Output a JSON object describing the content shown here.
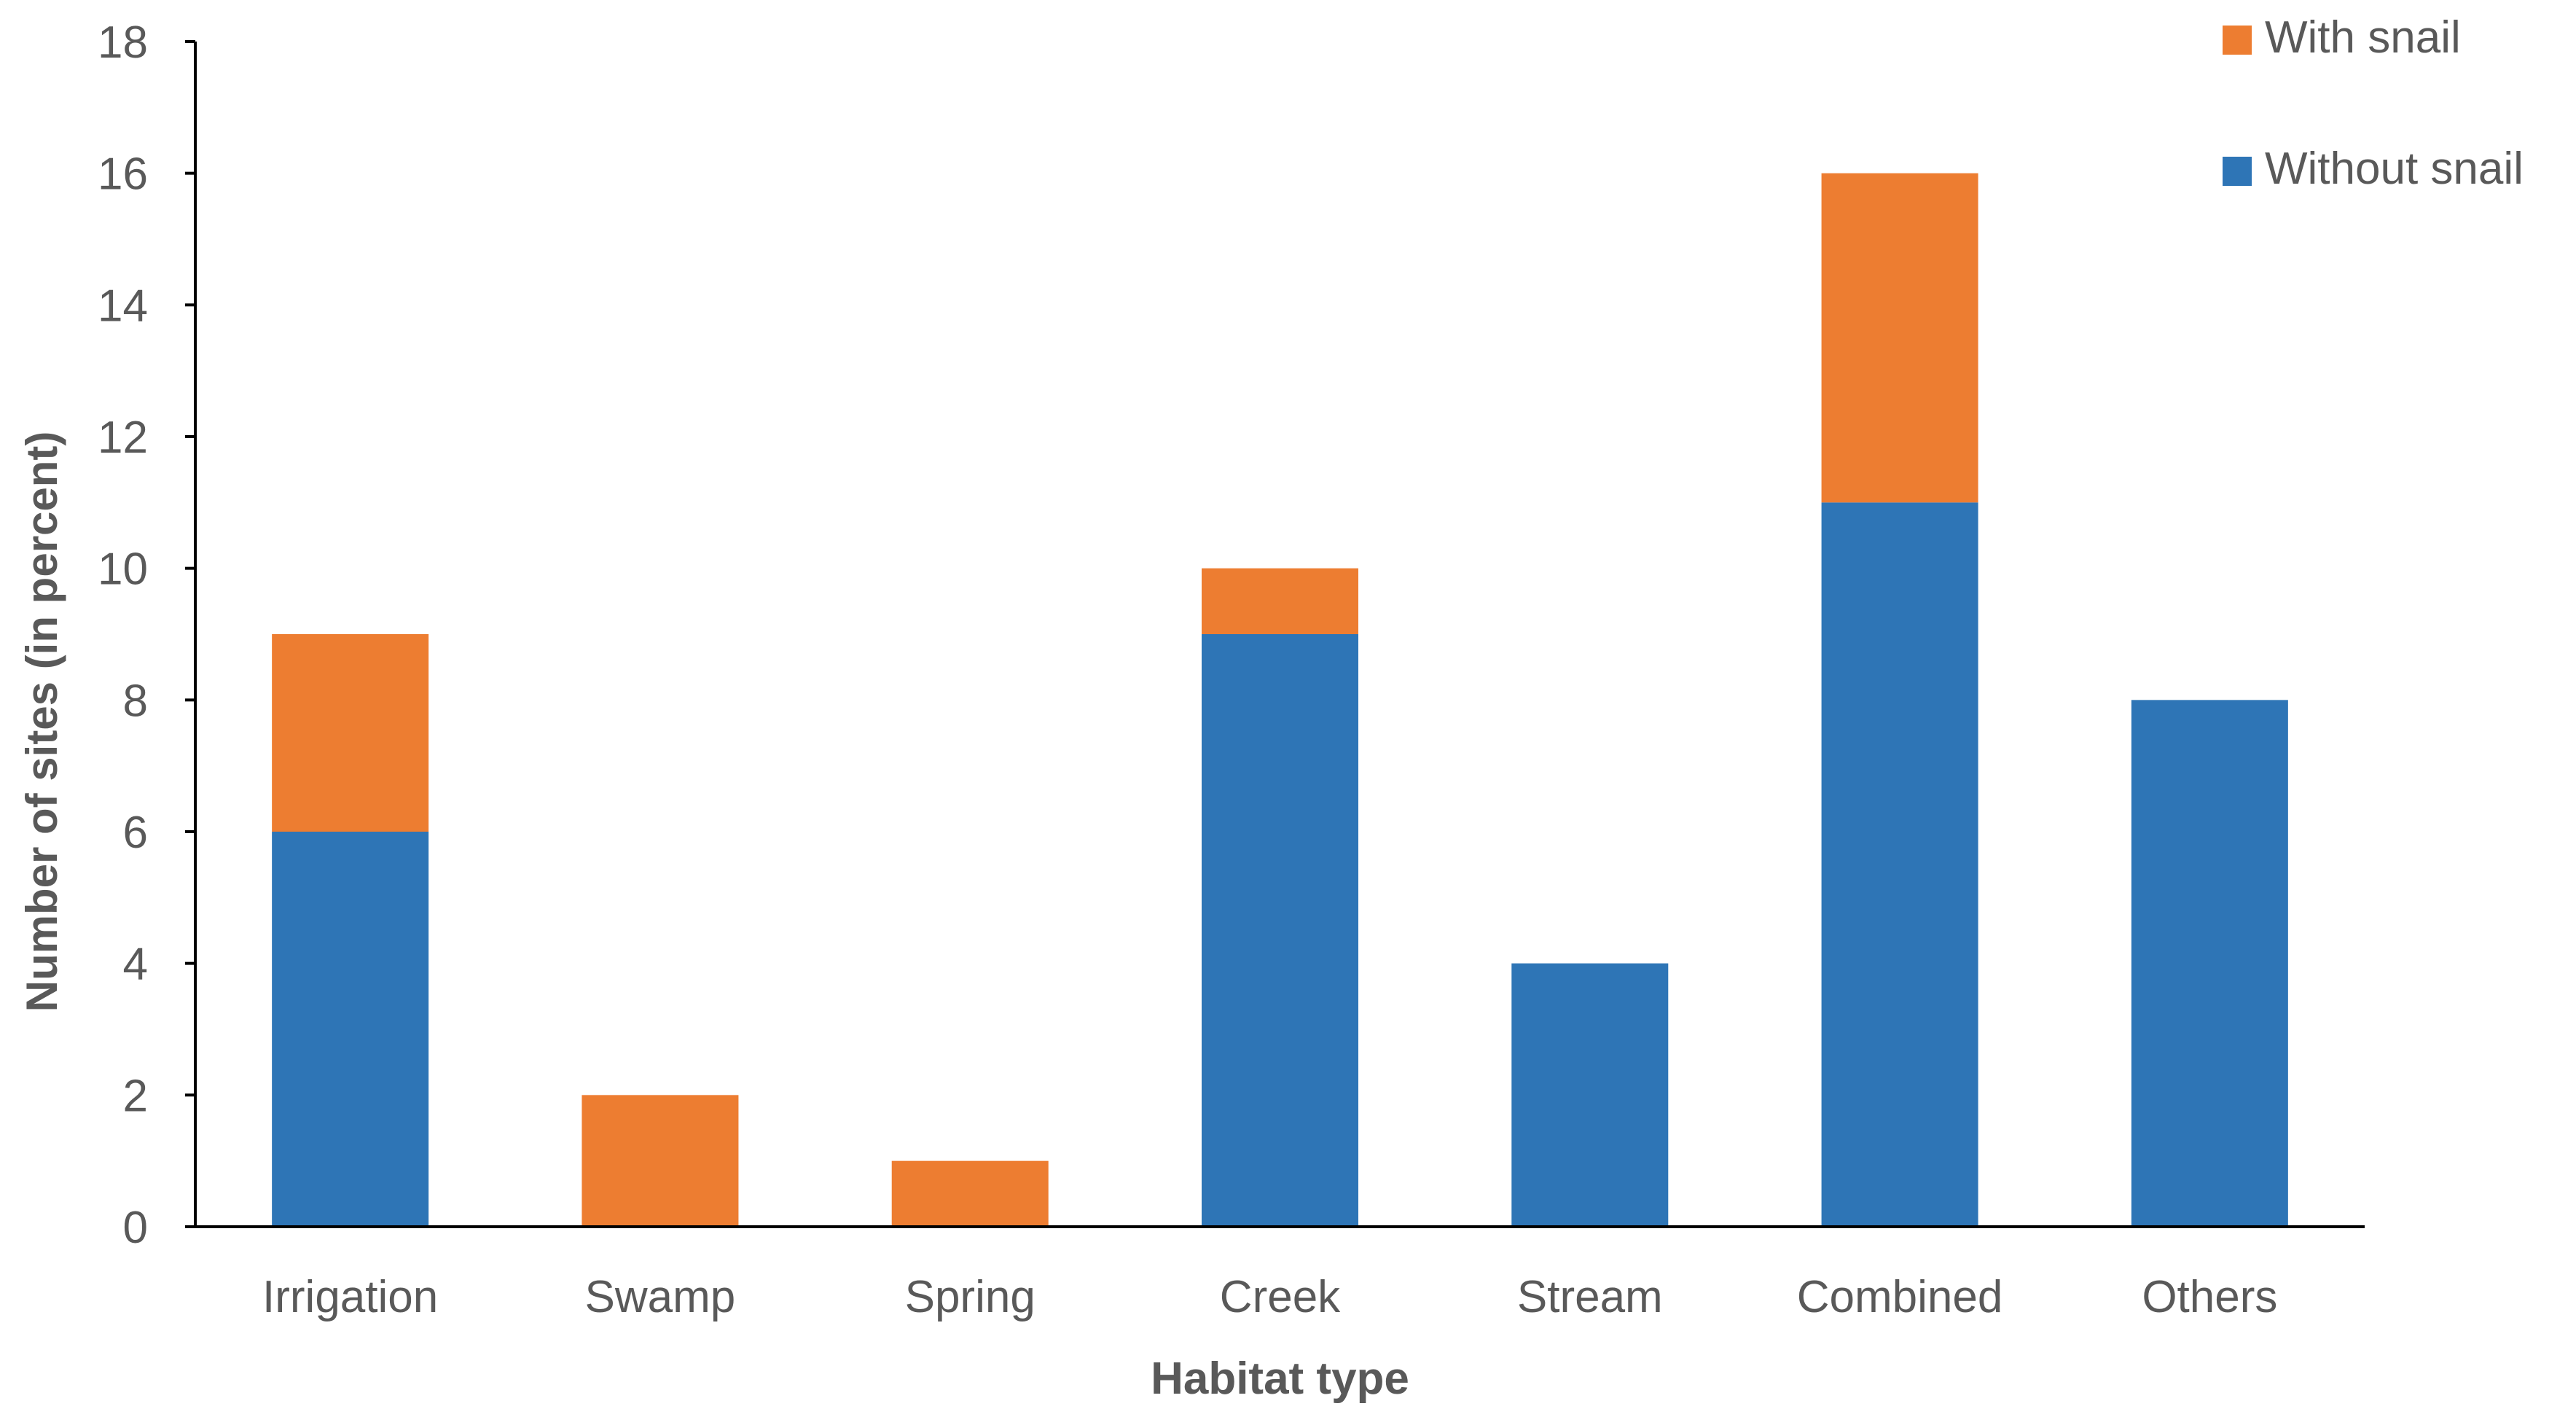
{
  "chart_data": {
    "type": "bar",
    "stacked": true,
    "title": "",
    "xlabel": "Habitat type",
    "ylabel": "Number of sites (in percent)",
    "categories": [
      "Irrigation",
      "Swamp",
      "Spring",
      "Creek",
      "Stream",
      "Combined",
      "Others"
    ],
    "series": [
      {
        "name": "Without snail",
        "color": "#2E75B6",
        "values": [
          6,
          0,
          0,
          9,
          4,
          11,
          8
        ]
      },
      {
        "name": "With snail",
        "color": "#ED7D31",
        "values": [
          3,
          2,
          1,
          1,
          0,
          5,
          0
        ]
      }
    ],
    "legend": [
      {
        "name": "With snail",
        "color": "#ED7D31"
      },
      {
        "name": "Without snail",
        "color": "#2E75B6"
      }
    ],
    "legend_position": "top-right",
    "ylim": [
      0,
      18
    ],
    "yticks": [
      0,
      2,
      4,
      6,
      8,
      10,
      12,
      14,
      16,
      18
    ],
    "grid": false,
    "axis_color": "#000000"
  }
}
